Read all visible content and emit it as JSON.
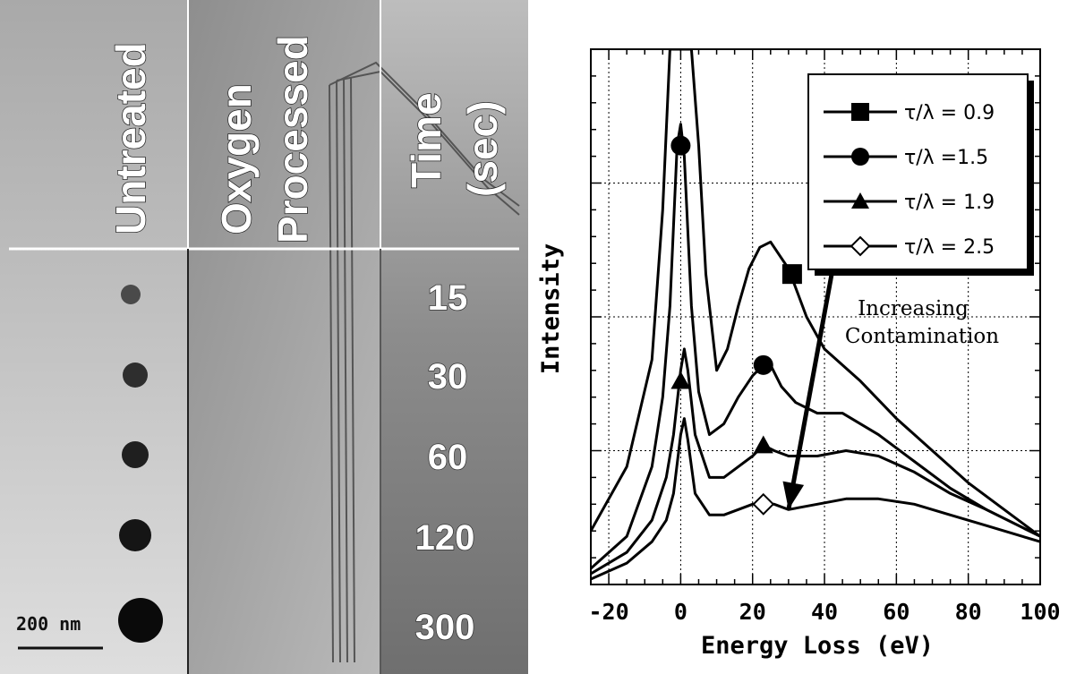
{
  "micrograph": {
    "headers": [
      "Untreated",
      "Oxygen Processed",
      "Time (sec)"
    ],
    "header_oxygen_line1": "Oxygen",
    "header_oxygen_line2": "Processed",
    "header_time_line1": "Time",
    "header_time_line2": "(sec)",
    "times": [
      "15",
      "30",
      "60",
      "120",
      "300"
    ],
    "scale_bar_label": "200 nm"
  },
  "chart_data": {
    "type": "line",
    "title": "",
    "xlabel": "Energy Loss (eV)",
    "ylabel": "Intensity",
    "xlim": [
      -25,
      100
    ],
    "ylim": [
      0,
      100
    ],
    "xticks": [
      -20,
      0,
      20,
      40,
      60,
      80,
      100
    ],
    "xtick_labels": [
      "-20",
      "0",
      "20",
      "40",
      "60",
      "80",
      "100"
    ],
    "y_tick_labels_shown": false,
    "grid": true,
    "legend_placement": "top-right",
    "series": [
      {
        "name": "τ/λ = 0.9",
        "marker": "square",
        "x": [
          -25,
          -15,
          -8,
          -5,
          -3,
          -2,
          -1,
          1,
          2,
          3,
          5,
          7,
          10,
          13,
          16,
          19,
          22,
          25,
          28,
          30,
          35,
          40,
          50,
          60,
          70,
          80,
          90,
          100
        ],
        "y": [
          10,
          22,
          42,
          70,
          100,
          100,
          100,
          100,
          100,
          100,
          82,
          58,
          40,
          44,
          52,
          59,
          63,
          64,
          61,
          59,
          50,
          44,
          38,
          31,
          25,
          19,
          14,
          9
        ]
      },
      {
        "name": "τ/λ =1.5",
        "marker": "circle",
        "x": [
          -25,
          -15,
          -8,
          -5,
          -3,
          -1,
          0,
          1,
          3,
          5,
          8,
          12,
          16,
          20,
          23,
          25,
          28,
          32,
          38,
          45,
          55,
          65,
          75,
          85,
          100
        ],
        "y": [
          3,
          9,
          22,
          35,
          52,
          82,
          86,
          80,
          52,
          36,
          28,
          30,
          35,
          39,
          41,
          41,
          37,
          34,
          32,
          32,
          28,
          23,
          18,
          14,
          9
        ]
      },
      {
        "name": "τ/λ = 1.9",
        "marker": "triangle",
        "x": [
          -25,
          -15,
          -8,
          -4,
          -2,
          0,
          1,
          2,
          4,
          8,
          12,
          16,
          20,
          23,
          26,
          30,
          38,
          46,
          55,
          65,
          75,
          85,
          100
        ],
        "y": [
          2,
          6,
          12,
          20,
          28,
          40,
          44,
          40,
          28,
          20,
          20,
          22,
          24,
          26,
          25,
          24,
          24,
          25,
          24,
          21,
          17,
          14,
          9
        ]
      },
      {
        "name": "τ/λ = 2.5",
        "marker": "diamond",
        "x": [
          -25,
          -15,
          -8,
          -4,
          -2,
          0,
          1,
          2,
          4,
          8,
          12,
          16,
          20,
          23,
          26,
          30,
          38,
          46,
          55,
          65,
          75,
          85,
          100
        ],
        "y": [
          1,
          4,
          8,
          12,
          17,
          28,
          31,
          27,
          17,
          13,
          13,
          14,
          15,
          15,
          15,
          14,
          15,
          16,
          16,
          15,
          13,
          11,
          8
        ]
      }
    ],
    "marker_points": [
      {
        "series": 0,
        "x": 31,
        "y": 58
      },
      {
        "series": 1,
        "x": 0,
        "y": 82
      },
      {
        "series": 1,
        "x": 23,
        "y": 41
      },
      {
        "series": 2,
        "x": 0,
        "y": 38
      },
      {
        "series": 2,
        "x": 23,
        "y": 26
      },
      {
        "series": 3,
        "x": 23,
        "y": 15
      }
    ],
    "annotation_line1": "Increasing",
    "annotation_line2": "Contamination",
    "arrow_from": [
      42,
      58
    ],
    "arrow_to": [
      30,
      14
    ]
  }
}
